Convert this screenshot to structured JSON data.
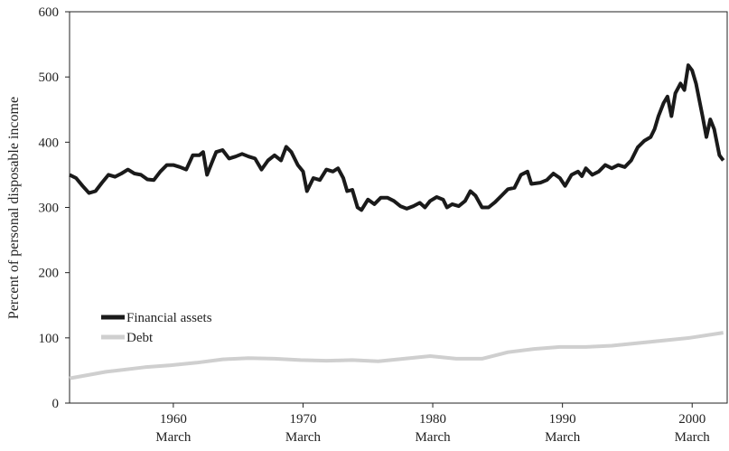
{
  "chart_data": {
    "type": "line",
    "y_label": "Percent of personal disposable income",
    "x_tick_sublabel": "March",
    "xlim": [
      1952.2,
      2002.9
    ],
    "xticks": [
      {
        "value": 1960.2,
        "label": "1960"
      },
      {
        "value": 1970.2,
        "label": "1970"
      },
      {
        "value": 1980.2,
        "label": "1980"
      },
      {
        "value": 1990.2,
        "label": "1990"
      },
      {
        "value": 2000.2,
        "label": "2000"
      }
    ],
    "ylim": [
      0,
      600
    ],
    "yticks": [
      0,
      100,
      200,
      300,
      400,
      500,
      600
    ],
    "legend": "lower-left",
    "series": [
      {
        "name": "Financial assets",
        "color": "#1a1a1a",
        "x": [
          1952.2,
          1952.7,
          1953.2,
          1953.7,
          1954.2,
          1954.7,
          1955.2,
          1955.7,
          1956.2,
          1956.7,
          1957.2,
          1957.7,
          1958.2,
          1958.7,
          1959.2,
          1959.7,
          1960.2,
          1960.7,
          1961.2,
          1961.7,
          1962.2,
          1962.5,
          1962.8,
          1963.2,
          1963.5,
          1964,
          1964.5,
          1965,
          1965.5,
          1966,
          1966.5,
          1967,
          1967.5,
          1968,
          1968.5,
          1968.9,
          1969.3,
          1969.8,
          1970.2,
          1970.5,
          1971,
          1971.5,
          1972,
          1972.5,
          1972.9,
          1973.3,
          1973.6,
          1974,
          1974.4,
          1974.7,
          1975.2,
          1975.7,
          1976.2,
          1976.7,
          1977.2,
          1977.7,
          1978.2,
          1978.7,
          1979.2,
          1979.6,
          1980,
          1980.5,
          1981,
          1981.3,
          1981.7,
          1982.2,
          1982.7,
          1983.1,
          1983.5,
          1984,
          1984.5,
          1985,
          1985.5,
          1986,
          1986.5,
          1987,
          1987.5,
          1987.8,
          1988.5,
          1989,
          1989.5,
          1990,
          1990.4,
          1990.9,
          1991.4,
          1991.7,
          1992,
          1992.5,
          1993,
          1993.5,
          1994,
          1994.5,
          1995,
          1995.5,
          1996,
          1996.5,
          1997,
          1997.3,
          1997.6,
          1998,
          1998.3,
          1998.6,
          1998.9,
          1999.3,
          1999.6,
          1999.9,
          2000.2,
          2000.5,
          2000.8,
          2001,
          2001.3,
          2001.6,
          2001.9,
          2002.3,
          2002.6
        ],
        "values": [
          350,
          345,
          333,
          322,
          325,
          338,
          350,
          347,
          352,
          358,
          352,
          350,
          343,
          342,
          355,
          365,
          365,
          362,
          358,
          380,
          380,
          385,
          350,
          370,
          385,
          388,
          375,
          378,
          382,
          378,
          375,
          358,
          372,
          380,
          372,
          393,
          385,
          365,
          355,
          325,
          345,
          342,
          358,
          355,
          360,
          345,
          325,
          327,
          300,
          296,
          312,
          305,
          315,
          315,
          310,
          302,
          298,
          302,
          307,
          300,
          310,
          316,
          312,
          300,
          305,
          302,
          310,
          325,
          318,
          300,
          300,
          308,
          318,
          328,
          330,
          350,
          355,
          336,
          338,
          342,
          352,
          345,
          333,
          350,
          355,
          348,
          360,
          350,
          355,
          365,
          360,
          365,
          362,
          372,
          392,
          402,
          408,
          420,
          440,
          460,
          470,
          440,
          475,
          490,
          480,
          518,
          510,
          490,
          460,
          440,
          408,
          435,
          420,
          380,
          372
        ]
      },
      {
        "name": "Debt",
        "color": "#cfcfcf",
        "x": [
          1952.2,
          1955,
          1958,
          1960,
          1962,
          1964,
          1966,
          1968,
          1970,
          1972,
          1974,
          1976,
          1978,
          1980,
          1982,
          1984,
          1986,
          1988,
          1990,
          1992,
          1994,
          1996,
          1998,
          2000,
          2002.6
        ],
        "values": [
          38,
          48,
          55,
          58,
          62,
          67,
          69,
          68,
          66,
          65,
          66,
          64,
          68,
          72,
          68,
          68,
          78,
          83,
          86,
          86,
          88,
          92,
          96,
          100,
          108
        ]
      }
    ]
  }
}
